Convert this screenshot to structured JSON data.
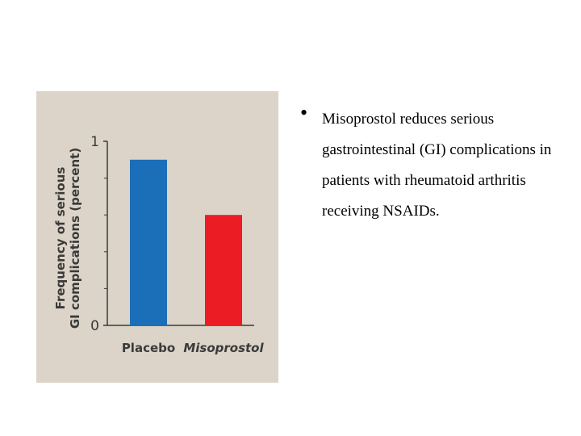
{
  "bullet": {
    "symbol": "•",
    "text": "Misoprostol reduces serious gastrointestinal (GI) complications in patients with rheumatoid arthritis receiving NSAIDs."
  },
  "chart_data": {
    "type": "bar",
    "ylabel_lines": [
      "Frequency of serious",
      "GI complications (percent)"
    ],
    "categories": [
      "Placebo",
      "Misoprostol"
    ],
    "values": [
      0.9,
      0.6
    ],
    "colors": [
      "#1a6fb8",
      "#ec1c24"
    ],
    "ylim": [
      0,
      1
    ],
    "yticks": [
      0,
      1
    ],
    "y_minor_ticks": [
      0.2,
      0.4,
      0.6,
      0.8
    ],
    "grid": false,
    "legend": "none"
  }
}
